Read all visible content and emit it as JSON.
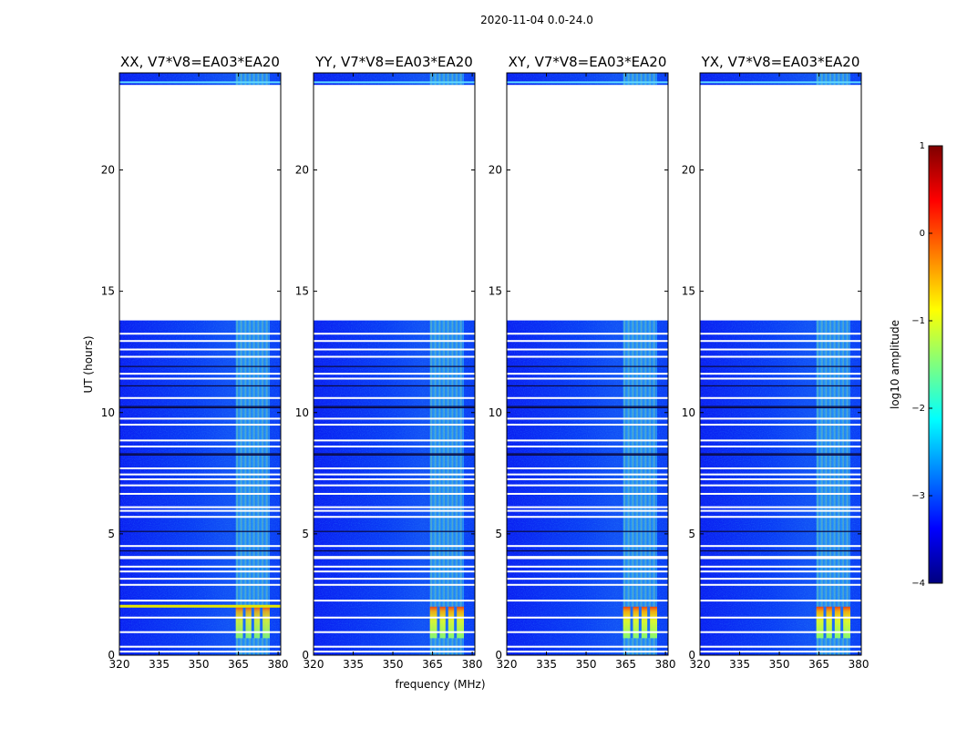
{
  "chart_data": {
    "type": "heatmap",
    "title": "2020-11-04 0.0-24.0",
    "xlabel": "frequency (MHz)",
    "ylabel": "UT (hours)",
    "xlim": [
      320,
      381
    ],
    "ylim": [
      0,
      24
    ],
    "xticks": [
      "320",
      "335",
      "350",
      "365",
      "380"
    ],
    "yticks": [
      "0",
      "5",
      "10",
      "15",
      "20"
    ],
    "xtick_values": [
      320,
      335,
      350,
      365,
      380
    ],
    "ytick_values": [
      0,
      5,
      10,
      15,
      20
    ],
    "panels": [
      {
        "title": "XX, V7*V8=EA03*EA20",
        "burst_level": 0.35
      },
      {
        "title": "YY, V7*V8=EA03*EA20",
        "burst_level": 0.5
      },
      {
        "title": "XY, V7*V8=EA03*EA20",
        "burst_level": 0.55
      },
      {
        "title": "YX, V7*V8=EA03*EA20",
        "burst_level": 0.55
      }
    ],
    "data_gap_hours": [
      13.8,
      23.5
    ],
    "band_edge_mhz": 364,
    "burst_hours": [
      0.7,
      2.0
    ],
    "colorbar": {
      "label": "log10 amplitude",
      "range": [
        -4,
        1
      ],
      "ticks": [
        "1",
        "0",
        "−1",
        "−2",
        "−3",
        "−4"
      ],
      "tick_values": [
        1,
        0,
        -1,
        -2,
        -3,
        -4
      ],
      "colormap": [
        "#00007f",
        "#0000ff",
        "#007fff",
        "#00ffff",
        "#7fff7f",
        "#ffff00",
        "#ff7f00",
        "#ff0000",
        "#7f0000"
      ]
    }
  }
}
